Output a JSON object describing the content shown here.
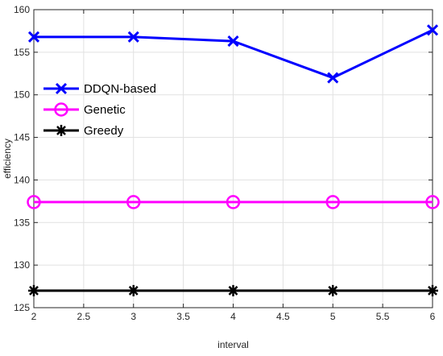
{
  "chart_data": {
    "type": "line",
    "xlabel": "interval",
    "ylabel": "efficiency",
    "xlim": [
      2,
      6
    ],
    "ylim": [
      125,
      160
    ],
    "xticks": [
      "2",
      "2.5",
      "3",
      "3.5",
      "4",
      "4.5",
      "5",
      "5.5",
      "6"
    ],
    "yticks": [
      "125",
      "130",
      "135",
      "140",
      "145",
      "150",
      "155",
      "160"
    ],
    "grid": true,
    "legend_position": "upper-left",
    "x": [
      2,
      3,
      4,
      5,
      6
    ],
    "series": [
      {
        "name": "DDQN-based",
        "values": [
          156.8,
          156.8,
          156.3,
          152.0,
          157.6
        ],
        "color": "#0000ff",
        "marker": "x"
      },
      {
        "name": "Genetic",
        "values": [
          137.4,
          137.4,
          137.4,
          137.4,
          137.4
        ],
        "color": "#ff00ff",
        "marker": "circle"
      },
      {
        "name": "Greedy",
        "values": [
          127.0,
          127.0,
          127.0,
          127.0,
          127.0
        ],
        "color": "#000000",
        "marker": "asterisk"
      }
    ]
  }
}
